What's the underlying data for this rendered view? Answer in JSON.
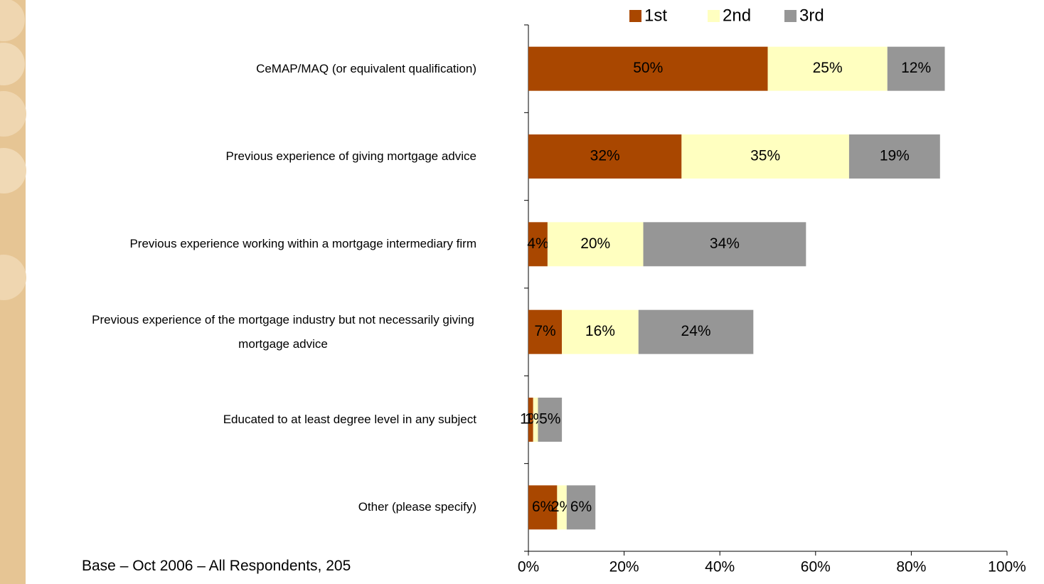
{
  "chart_data": {
    "type": "stacked-barh",
    "categories": [
      "CeMAP/MAQ (or equivalent qualification)",
      "Previous experience of giving mortgage advice",
      "Previous experience working within a mortgage intermediary firm",
      "Previous experience of the mortgage industry but not necessarily giving mortgage advice",
      "Educated to at least degree level in any subject",
      "Other (please specify)"
    ],
    "series": [
      {
        "name": "1st",
        "color": "#a94700",
        "values": [
          50,
          32,
          4,
          7,
          1,
          6
        ],
        "value_labels": [
          "50%",
          "32%",
          "4%",
          "7%",
          "1%",
          "6%"
        ]
      },
      {
        "name": "2nd",
        "color": "#ffffc0",
        "values": [
          25,
          35,
          20,
          16,
          1,
          2
        ],
        "value_labels": [
          "25%",
          "35%",
          "20%",
          "16%",
          "1%",
          "2%"
        ]
      },
      {
        "name": "3rd",
        "color": "#969696",
        "values": [
          12,
          19,
          34,
          24,
          5,
          6
        ],
        "value_labels": [
          "12%",
          "19%",
          "34%",
          "24%",
          "5%",
          "6%"
        ]
      }
    ],
    "xlim": [
      0,
      100
    ],
    "xticks": [
      {
        "value": 0,
        "label": "0%"
      },
      {
        "value": 20,
        "label": "20%"
      },
      {
        "value": 40,
        "label": "40%"
      },
      {
        "value": 60,
        "label": "60%"
      },
      {
        "value": 80,
        "label": "80%"
      },
      {
        "value": 100,
        "label": "100%"
      }
    ],
    "legend": "top",
    "footnote": "Base – Oct 2006 – All Respondents, 205"
  }
}
